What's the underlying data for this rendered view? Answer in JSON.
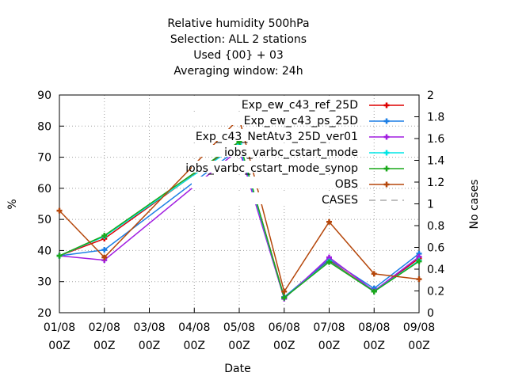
{
  "chart_data": {
    "type": "line",
    "title_lines": [
      "Relative humidity 500hPa",
      "Selection: ALL      2 stations",
      "Used {00} + 03",
      "Averaging window: 24h"
    ],
    "xlabel": "Date",
    "ylabel": "%",
    "y2label": "No cases",
    "categories": [
      [
        "01/08",
        "00Z"
      ],
      [
        "02/08",
        "00Z"
      ],
      [
        "03/08",
        "00Z"
      ],
      [
        "04/08",
        "00Z"
      ],
      [
        "05/08",
        "00Z"
      ],
      [
        "06/08",
        "00Z"
      ],
      [
        "07/08",
        "00Z"
      ],
      [
        "08/08",
        "00Z"
      ],
      [
        "09/08",
        "00Z"
      ]
    ],
    "ylim": [
      20,
      90
    ],
    "yticks": [
      20,
      30,
      40,
      50,
      60,
      70,
      80,
      90
    ],
    "y2lim": [
      0,
      2
    ],
    "y2ticks": [
      "0",
      "0.2",
      "0.4",
      "0.6",
      "0.8",
      "1",
      "1.2",
      "1.4",
      "1.6",
      "1.8",
      "2"
    ],
    "grid": true,
    "legend_position": "top-right",
    "series": [
      {
        "name": "Exp_ew_c43_ref_25D",
        "color": "#dd0000",
        "dash": false,
        "marker": true,
        "points": [
          [
            0,
            38.3
          ],
          [
            1,
            43.8
          ],
          [
            4,
            74.8
          ],
          [
            5,
            25.0
          ],
          [
            6,
            36.8
          ],
          [
            7,
            26.8
          ],
          [
            8,
            37.5
          ]
        ]
      },
      {
        "name": "Exp_ew_c43_ps_25D",
        "color": "#1d7fe5",
        "dash": false,
        "marker": true,
        "points": [
          [
            0,
            38.3
          ],
          [
            1,
            40.2
          ],
          [
            4,
            73.0
          ],
          [
            5,
            25.0
          ],
          [
            6,
            37.2
          ],
          [
            7,
            27.8
          ],
          [
            8,
            39.0
          ]
        ]
      },
      {
        "name": "Exp_c43_NetAtv3_25D_ver01",
        "color": "#a11ee0",
        "dash": false,
        "marker": true,
        "points": [
          [
            0,
            38.3
          ],
          [
            1,
            36.9
          ],
          [
            4,
            72.5
          ],
          [
            5,
            24.5
          ],
          [
            6,
            37.8
          ],
          [
            7,
            27.0
          ],
          [
            8,
            38.0
          ]
        ]
      },
      {
        "name": "iobs_varbc_cstart_mode",
        "color": "#00e5e5",
        "dash": false,
        "marker": true,
        "points": [
          [
            0,
            38.3
          ],
          [
            1,
            44.5
          ],
          [
            4,
            74.3
          ],
          [
            5,
            24.8
          ],
          [
            6,
            36.5
          ],
          [
            7,
            26.8
          ],
          [
            8,
            36.8
          ]
        ]
      },
      {
        "name": "iobs_varbc_cstart_mode_synop",
        "color": "#1aa81a",
        "dash": false,
        "marker": true,
        "points": [
          [
            0,
            38.3
          ],
          [
            1,
            44.8
          ],
          [
            4,
            75.0
          ],
          [
            5,
            24.8
          ],
          [
            6,
            36.3
          ],
          [
            7,
            26.8
          ],
          [
            8,
            36.5
          ]
        ]
      },
      {
        "name": "OBS",
        "color": "#b5470b",
        "dash": false,
        "marker": true,
        "points": [
          [
            0,
            52.8
          ],
          [
            1,
            37.8
          ],
          [
            4,
            82.5
          ],
          [
            5,
            26.8
          ],
          [
            6,
            49.2
          ],
          [
            7,
            32.5
          ],
          [
            8,
            30.8
          ]
        ]
      },
      {
        "name": "CASES",
        "color": "#aaaaaa",
        "dash": true,
        "marker": false,
        "points": []
      }
    ]
  }
}
